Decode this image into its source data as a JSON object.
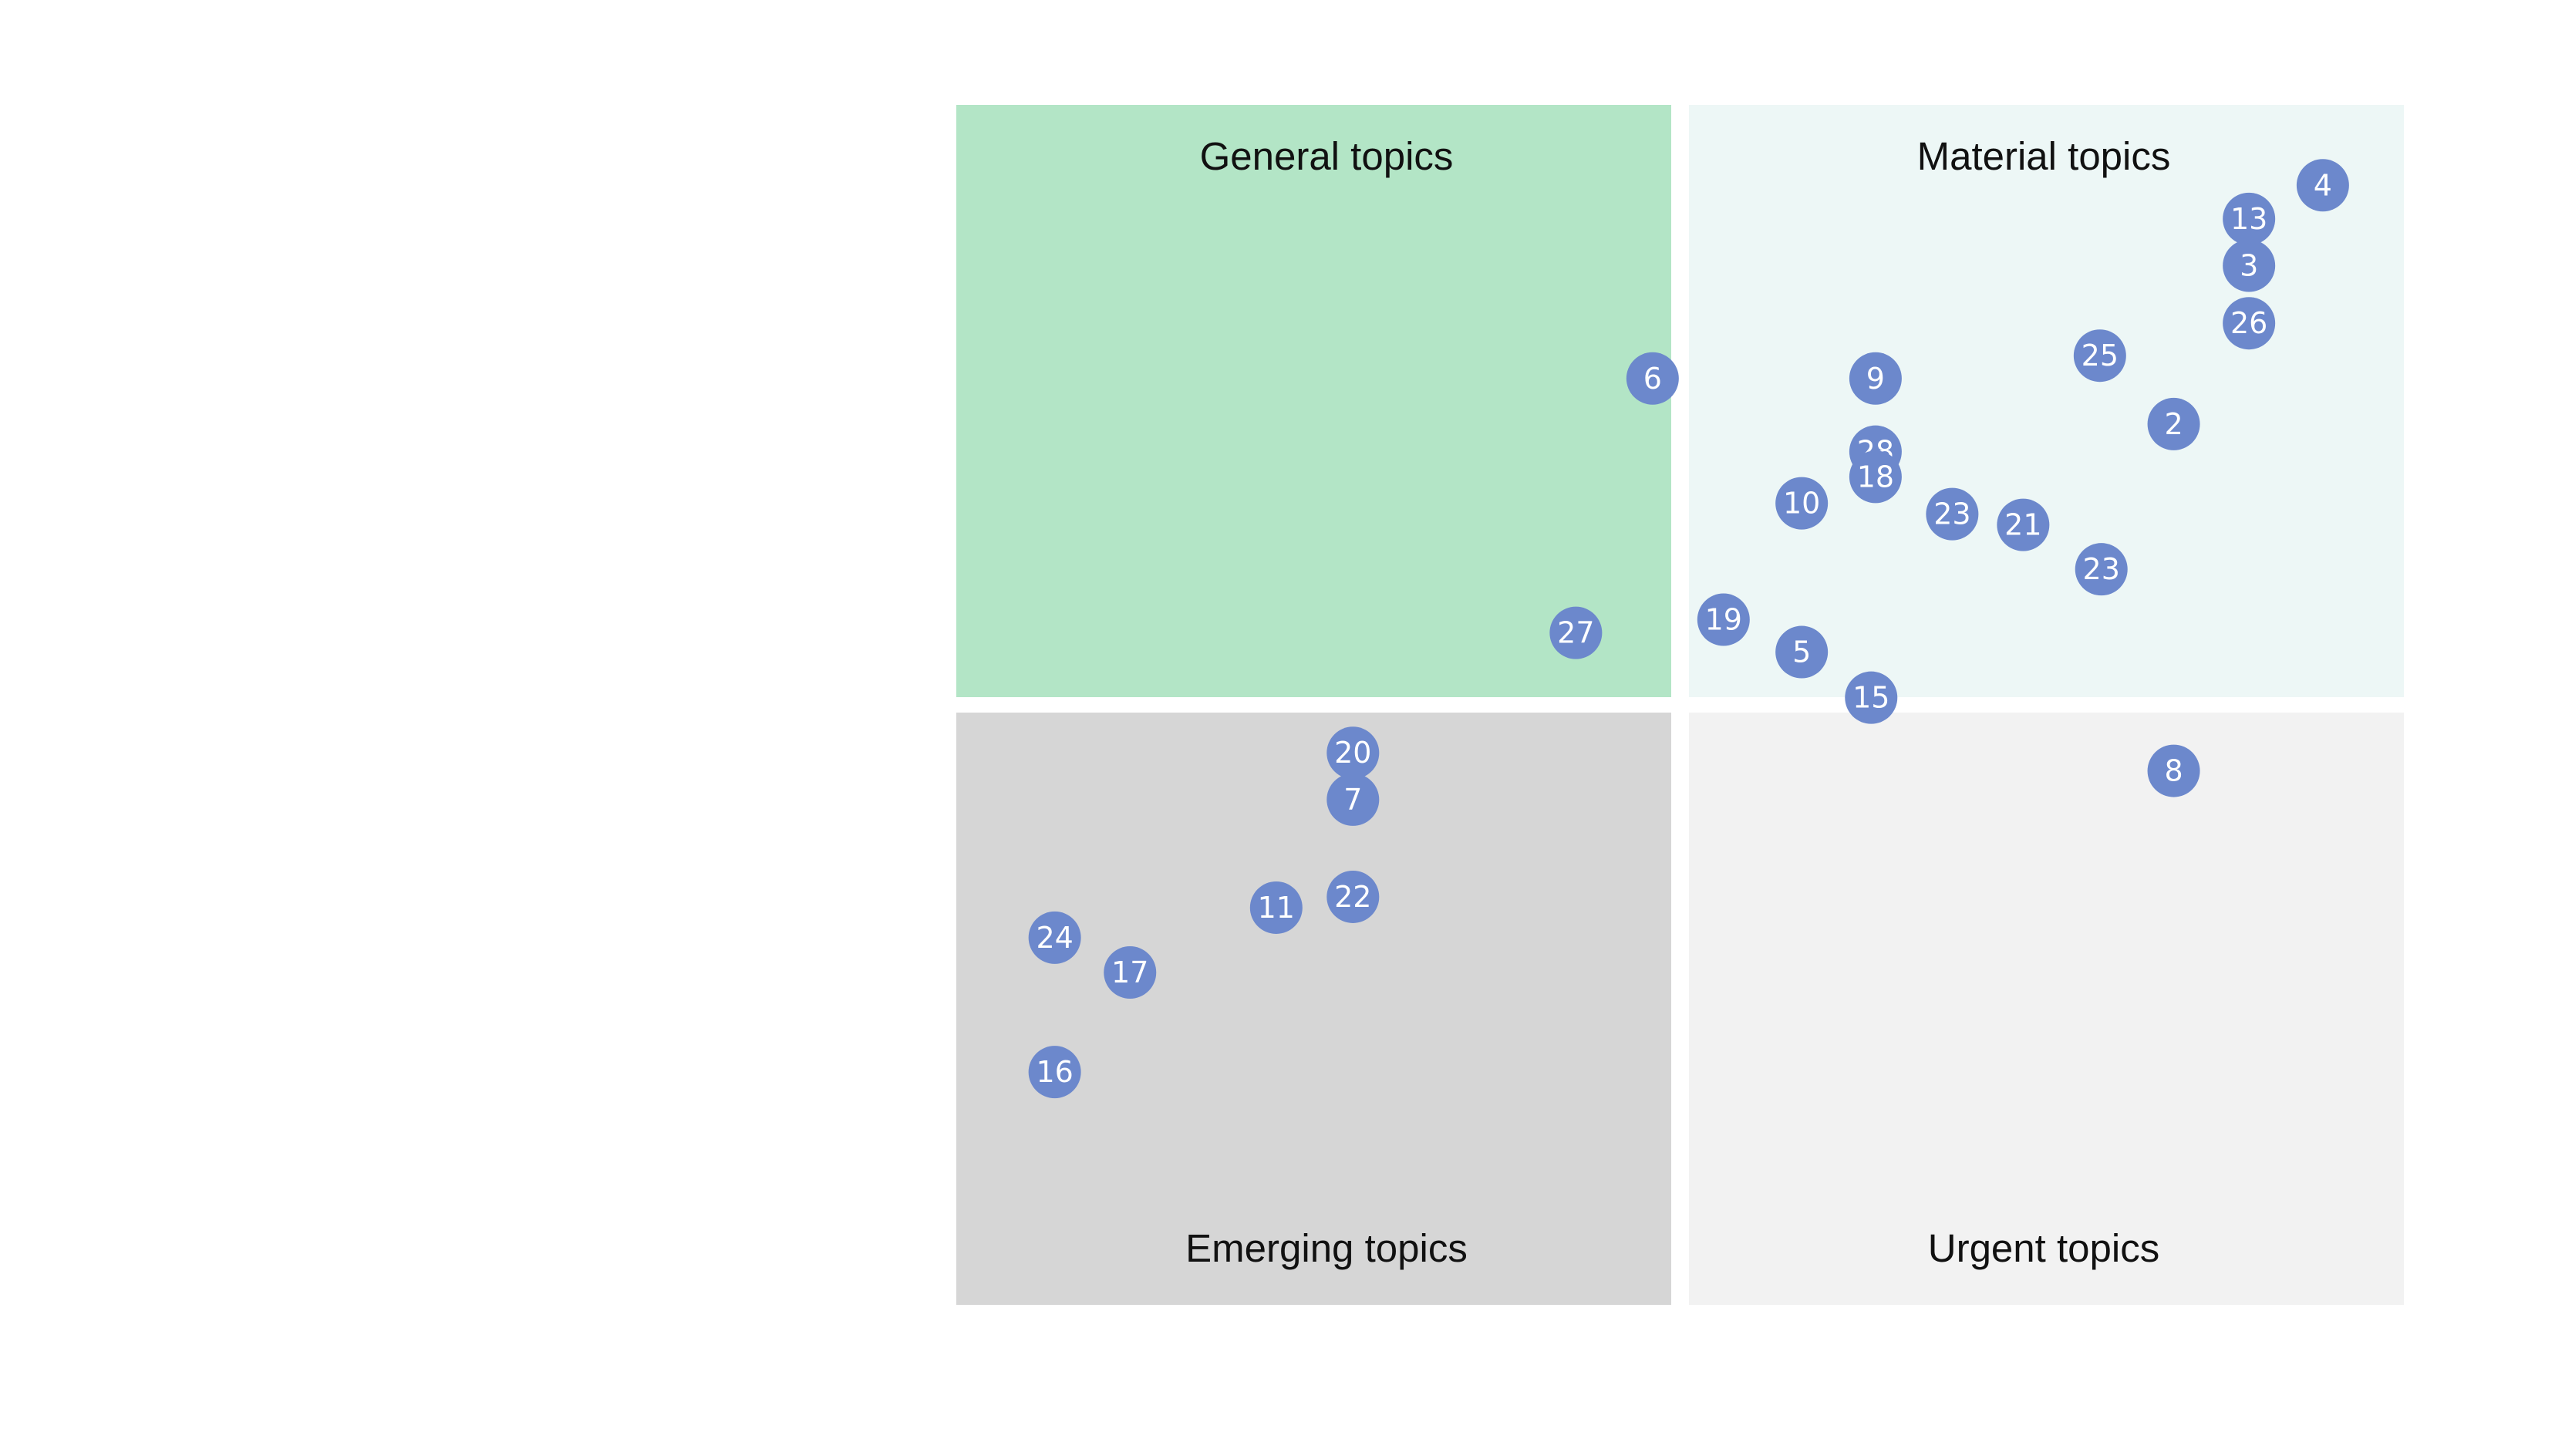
{
  "chart_data": {
    "type": "scatter",
    "title": "",
    "xlabel": "",
    "ylabel": "",
    "xlim": [
      0,
      100
    ],
    "ylim": [
      0,
      100
    ],
    "grid": false,
    "legend": "none",
    "quadrants": [
      {
        "id": "general",
        "label": "General topics",
        "color": "#b3e5c6"
      },
      {
        "id": "material",
        "label": "Material topics",
        "color": "#edf7f6"
      },
      {
        "id": "emerging",
        "label": "Emerging topics",
        "color": "#d6d6d6"
      },
      {
        "id": "urgent",
        "label": "Urgent topics",
        "color": "#f2f2f2"
      }
    ],
    "point_color": "#6c88cc",
    "points": [
      {
        "label": "4",
        "x": 94.4,
        "y": 93.3
      },
      {
        "label": "13",
        "x": 89.3,
        "y": 90.5
      },
      {
        "label": "3",
        "x": 89.3,
        "y": 86.6
      },
      {
        "label": "26",
        "x": 89.3,
        "y": 81.8
      },
      {
        "label": "25",
        "x": 79.0,
        "y": 79.1
      },
      {
        "label": "9",
        "x": 63.5,
        "y": 77.2
      },
      {
        "label": "6",
        "x": 48.1,
        "y": 77.2
      },
      {
        "label": "2",
        "x": 84.1,
        "y": 73.4
      },
      {
        "label": "28",
        "x": 63.5,
        "y": 71.1
      },
      {
        "label": "18",
        "x": 63.5,
        "y": 69.0
      },
      {
        "label": "10",
        "x": 58.4,
        "y": 66.8
      },
      {
        "label": "23",
        "x": 68.8,
        "y": 65.9
      },
      {
        "label": "21",
        "x": 73.7,
        "y": 65.0
      },
      {
        "label": "23",
        "x": 79.1,
        "y": 61.3
      },
      {
        "label": "19",
        "x": 53.0,
        "y": 57.1
      },
      {
        "label": "27",
        "x": 42.8,
        "y": 56.0
      },
      {
        "label": "5",
        "x": 58.4,
        "y": 54.4
      },
      {
        "label": "15",
        "x": 63.2,
        "y": 50.6
      },
      {
        "label": "8",
        "x": 84.1,
        "y": 44.5
      },
      {
        "label": "20",
        "x": 27.4,
        "y": 46.0
      },
      {
        "label": "7",
        "x": 27.4,
        "y": 42.1
      },
      {
        "label": "22",
        "x": 27.4,
        "y": 34.0
      },
      {
        "label": "11",
        "x": 22.1,
        "y": 33.1
      },
      {
        "label": "24",
        "x": 6.8,
        "y": 30.6
      },
      {
        "label": "17",
        "x": 12.0,
        "y": 27.7
      },
      {
        "label": "16",
        "x": 6.8,
        "y": 19.4
      }
    ]
  }
}
